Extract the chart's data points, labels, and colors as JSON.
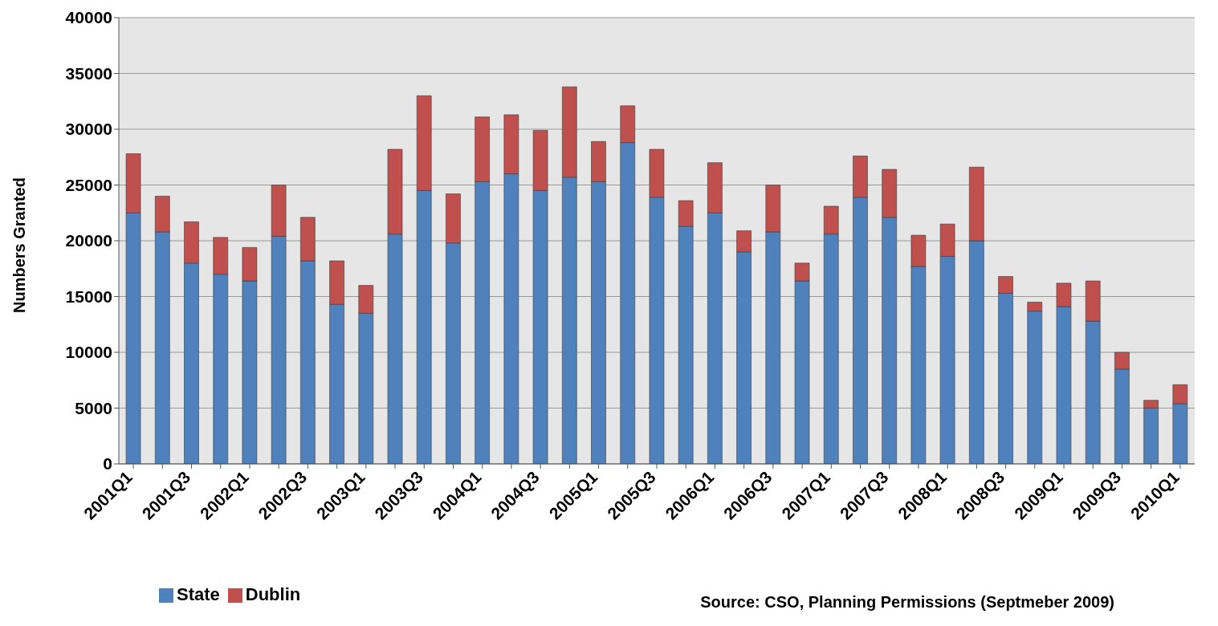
{
  "chart_data": {
    "type": "bar",
    "stacked": true,
    "ylabel": "Numbers Granted",
    "categories": [
      "2001Q1",
      null,
      "2001Q3",
      null,
      "2002Q1",
      null,
      "2002Q3",
      null,
      "2003Q1",
      null,
      "2003Q3",
      null,
      "2004Q1",
      null,
      "2004Q3",
      null,
      "2005Q1",
      null,
      "2005Q3",
      null,
      "2006Q1",
      null,
      "2006Q3",
      null,
      "2007Q1",
      null,
      "2007Q3",
      null,
      "2008Q1",
      null,
      "2008Q3",
      null,
      "2009Q1",
      null,
      "2009Q3",
      null,
      "2010Q1"
    ],
    "series": [
      {
        "name": "State",
        "color": "#4f81bd",
        "values": [
          22500,
          20800,
          18000,
          17000,
          16400,
          20400,
          18200,
          14300,
          13500,
          20600,
          24500,
          19800,
          25300,
          26000,
          24500,
          25700,
          25300,
          28800,
          23900,
          21300,
          22500,
          19000,
          20800,
          16400,
          20600,
          23900,
          22100,
          17700,
          18600,
          20000,
          15300,
          13700,
          14100,
          12800,
          8500,
          5000,
          5400
        ]
      },
      {
        "name": "Dublin",
        "color": "#c0504d",
        "values": [
          5300,
          3200,
          3700,
          3300,
          3000,
          4600,
          3900,
          3900,
          2500,
          7600,
          8500,
          4400,
          5800,
          5300,
          5400,
          8100,
          3600,
          3300,
          4300,
          2300,
          4500,
          1900,
          4200,
          1600,
          2500,
          3700,
          4300,
          2800,
          2900,
          6600,
          1500,
          800,
          2100,
          3600,
          1500,
          700,
          1700
        ]
      }
    ],
    "ylim": [
      0,
      40000
    ],
    "yticks": [
      0,
      5000,
      10000,
      15000,
      20000,
      25000,
      30000,
      35000,
      40000
    ],
    "grid": "y",
    "legend": "bottom left",
    "annotations": [
      "Source: CSO, Planning Permissions (Septmeber 2009)"
    ]
  }
}
